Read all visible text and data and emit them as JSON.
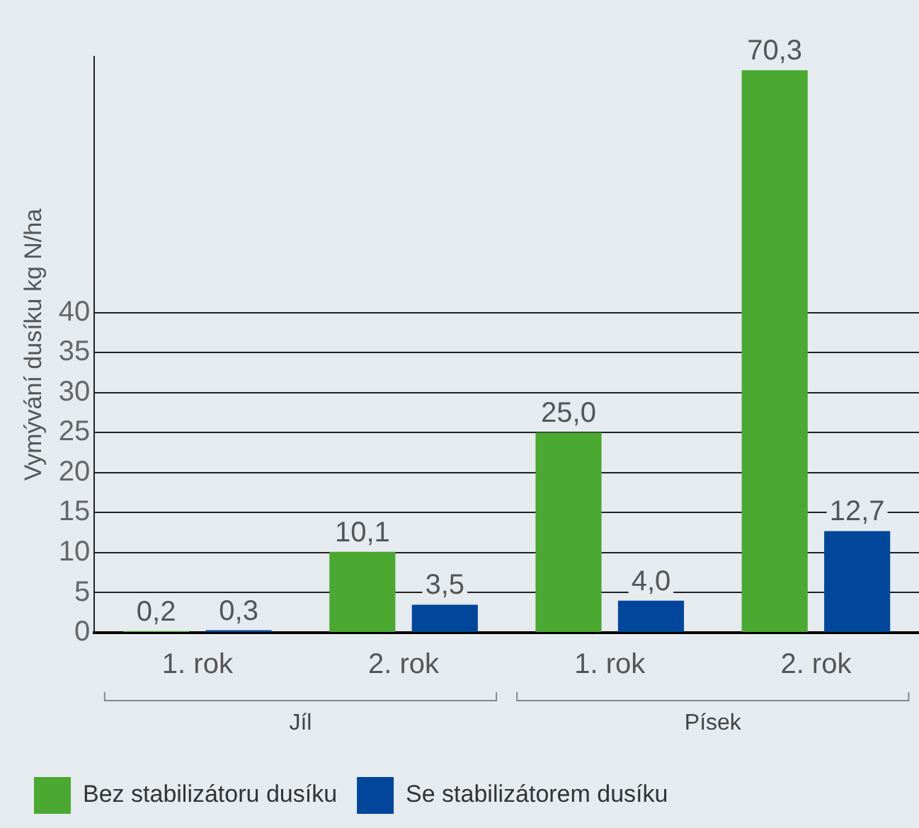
{
  "chart_data": {
    "type": "bar",
    "ylabel": "Vymývání dusíku kg N/ha",
    "categories": [
      "1. rok",
      "2. rok",
      "1. rok",
      "2. rok"
    ],
    "series": [
      {
        "name": "Bez stabilizátoru dusíku",
        "color": "#4ba831",
        "values": [
          0.2,
          10.1,
          25.0,
          70.3
        ],
        "value_labels": [
          "0,2",
          "10,1",
          "25,0",
          "70,3"
        ]
      },
      {
        "name": "Se stabilizátorem dusíku",
        "color": "#00479b",
        "values": [
          0.3,
          3.5,
          4.0,
          12.7
        ],
        "value_labels": [
          "0,3",
          "3,5",
          "4,0",
          "12,7"
        ]
      }
    ],
    "annotations": [
      "Jíl",
      "Písek"
    ],
    "ylim": [
      0,
      72
    ],
    "yticks": [
      0,
      5,
      10,
      15,
      20,
      25,
      30,
      35,
      40
    ],
    "grid": "y",
    "legend": "bottom"
  }
}
